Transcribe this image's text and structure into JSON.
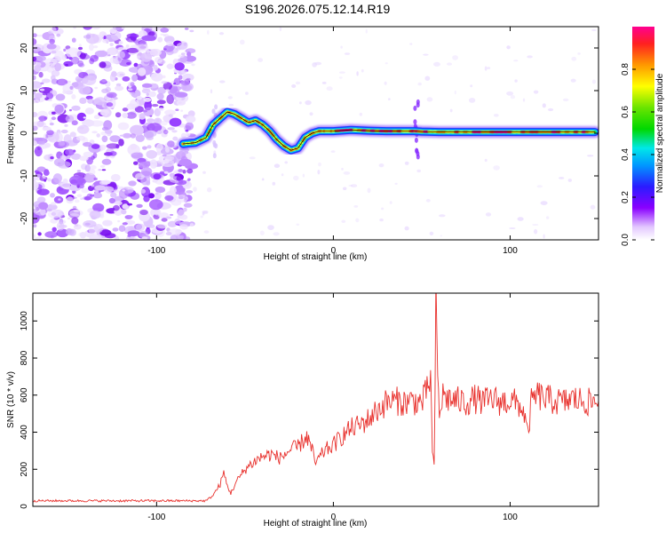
{
  "title": "S196.2026.075.12.14.R19",
  "colors": {
    "snr_line": "#e8302c",
    "ridge": "#000000"
  },
  "chart_data": [
    {
      "type": "heatmap",
      "xlabel": "Height of straight line (km)",
      "ylabel": "Frequency (Hz)",
      "xlim": [
        -170,
        150
      ],
      "ylim": [
        -25,
        25
      ],
      "xticks": [
        -100,
        0,
        100
      ],
      "yticks": [
        -20,
        -10,
        0,
        10,
        20
      ],
      "xticklabels": [
        "-100",
        "0",
        "100"
      ],
      "yticklabels": [
        "-20",
        "-10",
        "0",
        "10",
        "20"
      ],
      "colorbar": {
        "label": "Normalized spectral amplitude",
        "ticks": [
          0.0,
          0.2,
          0.4,
          0.6,
          0.8
        ],
        "ticklabels": [
          "0.0",
          "0.2",
          "0.4",
          "0.6",
          "0.8"
        ],
        "range": [
          0,
          1
        ]
      },
      "ridge": {
        "x": [
          -85,
          -78,
          -72,
          -68,
          -64,
          -60,
          -56,
          -52,
          -48,
          -44,
          -40,
          -36,
          -32,
          -28,
          -24,
          -20,
          -16,
          -12,
          -8,
          -4,
          0,
          10,
          20,
          30,
          40,
          46,
          50,
          60,
          70,
          80,
          90,
          100,
          110,
          120,
          130,
          140,
          148
        ],
        "y": [
          -2.5,
          -2.2,
          -1.0,
          2.0,
          3.5,
          5.0,
          4.5,
          3.5,
          2.5,
          3.0,
          2.0,
          0.5,
          -1.5,
          -3.0,
          -4.0,
          -3.5,
          -1.0,
          0.0,
          0.5,
          0.5,
          0.5,
          0.8,
          0.6,
          0.5,
          0.5,
          0.5,
          0.4,
          0.3,
          0.3,
          0.3,
          0.3,
          0.3,
          0.3,
          0.3,
          0.3,
          0.3,
          0.3
        ]
      }
    },
    {
      "type": "line",
      "xlabel": "Height of straight line (km)",
      "ylabel": "SNR (10 * v/v)",
      "xlim": [
        -170,
        150
      ],
      "ylim": [
        0,
        1150
      ],
      "xticks": [
        -100,
        0,
        100
      ],
      "yticks": [
        0,
        200,
        400,
        600,
        800,
        1000
      ],
      "xticklabels": [
        "-100",
        "0",
        "100"
      ],
      "yticklabels": [
        "0",
        "200",
        "400",
        "600",
        "800",
        "1000"
      ],
      "series": [
        {
          "name": "SNR",
          "x": [
            -170,
            -150,
            -130,
            -110,
            -90,
            -80,
            -72,
            -68,
            -64,
            -62,
            -60,
            -58,
            -55,
            -50,
            -45,
            -40,
            -35,
            -30,
            -25,
            -20,
            -15,
            -12,
            -10,
            -5,
            0,
            5,
            10,
            15,
            20,
            25,
            30,
            35,
            40,
            45,
            50,
            53,
            55,
            56,
            57,
            58,
            59,
            60,
            62,
            65,
            70,
            75,
            80,
            85,
            90,
            95,
            100,
            105,
            108,
            110,
            112,
            115,
            120,
            125,
            130,
            135,
            140,
            145,
            150
          ],
          "values": [
            30,
            30,
            30,
            30,
            30,
            30,
            30,
            60,
            120,
            180,
            110,
            70,
            130,
            200,
            240,
            270,
            280,
            260,
            300,
            320,
            380,
            300,
            230,
            300,
            330,
            380,
            420,
            440,
            470,
            520,
            560,
            570,
            560,
            570,
            560,
            620,
            700,
            300,
            200,
            1100,
            700,
            500,
            600,
            580,
            570,
            560,
            580,
            560,
            580,
            560,
            570,
            550,
            500,
            380,
            560,
            600,
            580,
            570,
            560,
            580,
            570,
            560,
            570
          ]
        }
      ]
    }
  ]
}
